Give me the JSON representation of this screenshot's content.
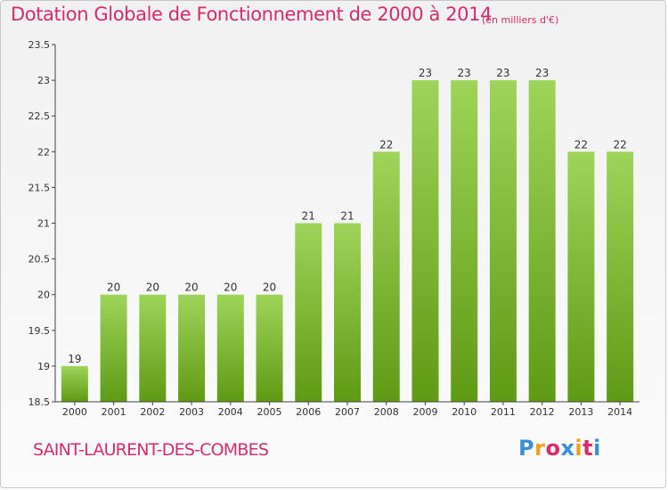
{
  "header": {
    "title": "Dotation Globale de Fonctionnement de 2000 à 2014",
    "unit": "(en milliers d'€)"
  },
  "footer": {
    "commune": "SAINT-LAURENT-DES-COMBES",
    "logo_letters": [
      "P",
      "r",
      "o",
      "x",
      "i",
      "t",
      "i"
    ],
    "logo_colors": [
      "#3a8fd6",
      "#f0a020",
      "#d62c6b",
      "#3a8fd6",
      "#f0a020",
      "#d62c6b",
      "#3a8fd6"
    ]
  },
  "colors": {
    "bar_top": "#9fd45a",
    "bar_bottom": "#5f9a14",
    "text_accent": "#d62c6b",
    "axis": "#444444"
  },
  "chart_data": {
    "type": "bar",
    "title": "Dotation Globale de Fonctionnement de 2000 à 2014",
    "subtitle": "(en milliers d'€)",
    "categories": [
      "2000",
      "2001",
      "2002",
      "2003",
      "2004",
      "2005",
      "2006",
      "2007",
      "2008",
      "2009",
      "2010",
      "2011",
      "2012",
      "2013",
      "2014"
    ],
    "values": [
      19,
      20,
      20,
      20,
      20,
      20,
      21,
      21,
      22,
      23,
      23,
      23,
      23,
      22,
      22
    ],
    "ylim": [
      18.5,
      23.5
    ],
    "yticks": [
      "18.5",
      "19",
      "19.5",
      "20",
      "20.5",
      "21",
      "21.5",
      "22",
      "22.5",
      "23",
      "23.5"
    ],
    "grid": false,
    "xlabel": "",
    "ylabel": ""
  }
}
